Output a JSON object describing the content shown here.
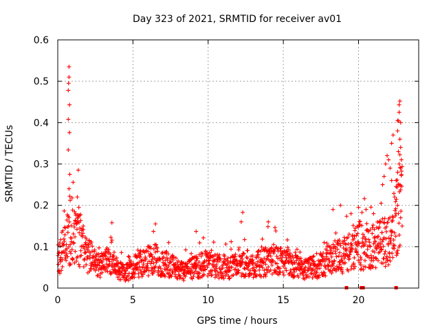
{
  "chart_data": {
    "type": "scatter",
    "title": "Day 323 of 2021, SRMTID for receiver av01",
    "xlabel": "GPS time / hours",
    "ylabel": "SRMTID / TECUs",
    "xlim": [
      0,
      24
    ],
    "ylim": [
      0,
      0.6
    ],
    "x_ticks": [
      0,
      5,
      10,
      15,
      20
    ],
    "x_tick_labels": [
      "0",
      "5",
      "10",
      "15",
      "20"
    ],
    "y_ticks": [
      0,
      0.1,
      0.2,
      0.3,
      0.4,
      0.5,
      0.6
    ],
    "y_tick_labels": [
      "0",
      "0.1",
      "0.2",
      "0.3",
      "0.4",
      "0.5",
      "0.6"
    ],
    "grid": true,
    "marker": "+",
    "color": "#ff0000",
    "series": [
      {
        "name": "av01",
        "profile_x": [
          0.0,
          0.3,
          0.6,
          0.9,
          1.2,
          1.5,
          2.0,
          2.5,
          3.0,
          3.5,
          4.0,
          4.5,
          5.0,
          5.5,
          6.0,
          6.5,
          7.0,
          7.5,
          8.0,
          8.5,
          9.0,
          9.5,
          10.0,
          10.5,
          11.0,
          11.5,
          12.0,
          12.5,
          13.0,
          13.5,
          14.0,
          14.5,
          15.0,
          15.5,
          16.0,
          16.5,
          17.0,
          17.5,
          18.0,
          18.5,
          19.0,
          19.5,
          20.0,
          20.5,
          21.0,
          21.5,
          22.0,
          22.5,
          22.9
        ],
        "profile_y": [
          0.07,
          0.09,
          0.11,
          0.12,
          0.13,
          0.11,
          0.08,
          0.06,
          0.055,
          0.07,
          0.045,
          0.035,
          0.05,
          0.06,
          0.065,
          0.07,
          0.06,
          0.055,
          0.045,
          0.04,
          0.05,
          0.055,
          0.06,
          0.055,
          0.05,
          0.05,
          0.055,
          0.06,
          0.055,
          0.06,
          0.065,
          0.07,
          0.06,
          0.055,
          0.05,
          0.045,
          0.05,
          0.055,
          0.07,
          0.075,
          0.08,
          0.09,
          0.1,
          0.095,
          0.1,
          0.11,
          0.12,
          0.16,
          0.25
        ],
        "spikes": [
          {
            "x": 0.75,
            "y": 0.535
          },
          {
            "x": 0.75,
            "y": 0.51
          },
          {
            "x": 0.72,
            "y": 0.495
          },
          {
            "x": 0.7,
            "y": 0.478
          },
          {
            "x": 0.78,
            "y": 0.443
          },
          {
            "x": 0.7,
            "y": 0.408
          },
          {
            "x": 0.78,
            "y": 0.376
          },
          {
            "x": 0.7,
            "y": 0.334
          },
          {
            "x": 0.8,
            "y": 0.275
          },
          {
            "x": 0.75,
            "y": 0.24
          },
          {
            "x": 0.8,
            "y": 0.222
          },
          {
            "x": 0.95,
            "y": 0.218
          },
          {
            "x": 1.3,
            "y": 0.22
          },
          {
            "x": 1.4,
            "y": 0.195
          },
          {
            "x": 3.6,
            "y": 0.158
          },
          {
            "x": 6.5,
            "y": 0.155
          },
          {
            "x": 9.2,
            "y": 0.137
          },
          {
            "x": 12.3,
            "y": 0.183
          },
          {
            "x": 12.2,
            "y": 0.16
          },
          {
            "x": 14.0,
            "y": 0.16
          },
          {
            "x": 14.5,
            "y": 0.138
          },
          {
            "x": 18.3,
            "y": 0.19
          },
          {
            "x": 18.8,
            "y": 0.2
          },
          {
            "x": 19.5,
            "y": 0.18
          },
          {
            "x": 20.0,
            "y": 0.195
          },
          {
            "x": 20.5,
            "y": 0.19
          },
          {
            "x": 21.0,
            "y": 0.18
          },
          {
            "x": 21.5,
            "y": 0.205
          },
          {
            "x": 21.6,
            "y": 0.25
          },
          {
            "x": 21.7,
            "y": 0.27
          },
          {
            "x": 21.8,
            "y": 0.3
          },
          {
            "x": 21.9,
            "y": 0.32
          },
          {
            "x": 22.1,
            "y": 0.29
          },
          {
            "x": 22.0,
            "y": 0.31
          },
          {
            "x": 22.2,
            "y": 0.35
          },
          {
            "x": 22.3,
            "y": 0.37
          },
          {
            "x": 22.2,
            "y": 0.26
          },
          {
            "x": 22.4,
            "y": 0.22
          },
          {
            "x": 22.6,
            "y": 0.38
          },
          {
            "x": 22.6,
            "y": 0.405
          },
          {
            "x": 22.7,
            "y": 0.425
          },
          {
            "x": 22.7,
            "y": 0.443
          },
          {
            "x": 22.75,
            "y": 0.452
          },
          {
            "x": 22.8,
            "y": 0.4
          },
          {
            "x": 22.75,
            "y": 0.36
          },
          {
            "x": 22.8,
            "y": 0.34
          },
          {
            "x": 22.65,
            "y": 0.33
          },
          {
            "x": 22.7,
            "y": 0.3
          },
          {
            "x": 22.85,
            "y": 0.31
          },
          {
            "x": 22.6,
            "y": 0.28
          },
          {
            "x": 22.8,
            "y": 0.29
          },
          {
            "x": 22.5,
            "y": 0.26
          },
          {
            "x": 22.7,
            "y": 0.25
          },
          {
            "x": 22.6,
            "y": 0.2
          },
          {
            "x": 22.5,
            "y": 0.18
          },
          {
            "x": 22.8,
            "y": 0.17
          },
          {
            "x": 22.9,
            "y": 0.15
          }
        ],
        "zero_marks": [
          19.2,
          20.2,
          20.3,
          22.5
        ]
      }
    ]
  }
}
